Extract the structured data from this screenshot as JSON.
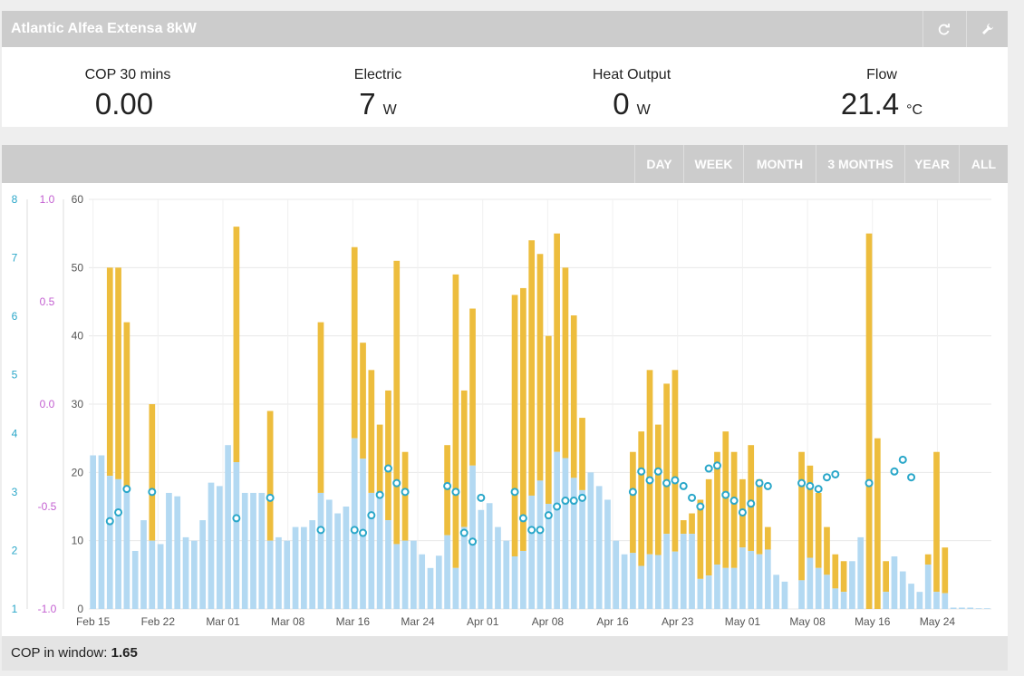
{
  "header": {
    "title": "Atlantic Alfea Extensa 8kW"
  },
  "stats": [
    {
      "label": "COP 30 mins",
      "value": "0.00",
      "unit": ""
    },
    {
      "label": "Electric",
      "value": "7",
      "unit": "W"
    },
    {
      "label": "Heat Output",
      "value": "0",
      "unit": "W"
    },
    {
      "label": "Flow",
      "value": "21.4",
      "unit": "°C"
    }
  ],
  "ranges": [
    "DAY",
    "WEEK",
    "MONTH",
    "3 MONTHS",
    "YEAR",
    "ALL"
  ],
  "colors": {
    "electric": "#b3d9f2",
    "heat": "#edbd3d",
    "cop": "#2aa7c9",
    "cop_axis": "#2aa7c9",
    "secondary_axis": "#c35fd1"
  },
  "footer": {
    "label": "COP in window:",
    "value": "1.65"
  },
  "chart_data": {
    "type": "bar",
    "stacked": true,
    "x_labels": [
      "Feb 15",
      "Feb 22",
      "Mar 01",
      "Mar 08",
      "Mar 16",
      "Mar 24",
      "Apr 01",
      "Apr 08",
      "Apr 16",
      "Apr 23",
      "May 01",
      "May 08",
      "May 16",
      "May 24"
    ],
    "y_left_ticks": [
      0,
      10,
      20,
      30,
      40,
      50,
      60
    ],
    "y_cop_ticks": [
      1,
      2,
      3,
      4,
      5,
      6,
      7,
      8
    ],
    "y_secondary_ticks": [
      "-1.0",
      "-0.5",
      "0.0",
      "0.5",
      "1.0"
    ],
    "ylim": [
      0,
      60
    ],
    "cop_lim": [
      1,
      8
    ],
    "grid": true,
    "series": [
      {
        "name": "electric",
        "values": [
          22.5,
          22.5,
          19.5,
          19,
          18,
          8.5,
          13,
          10,
          9.5,
          17,
          16.5,
          10.5,
          10,
          13,
          18.5,
          18,
          24,
          21.5,
          17,
          17,
          17,
          10,
          10.5,
          10,
          12,
          12,
          13,
          17,
          16,
          14,
          15,
          25,
          22,
          17,
          17,
          13,
          9.5,
          10,
          10,
          8,
          6,
          7.8,
          10.8,
          6,
          12,
          21,
          14.5,
          15.5,
          12,
          10,
          7.7,
          8.5,
          16.6,
          18.8,
          15.4,
          23,
          22.1,
          19.2,
          17.4,
          20,
          18,
          16,
          10,
          8,
          8.2,
          6.3,
          8,
          7.9,
          11,
          8.4,
          11,
          11,
          4.4,
          4.9,
          6.5,
          6,
          6,
          9,
          8.5,
          8,
          8.7,
          5,
          4,
          0,
          4.2,
          7.5,
          6,
          5,
          3,
          2.5,
          7,
          10.5,
          0,
          0,
          2.5,
          7.7,
          5.5,
          3.7,
          2.5,
          6.5,
          2.5,
          2.3,
          0.2,
          0.2,
          0.2,
          0.1,
          0.1
        ]
      },
      {
        "name": "heat",
        "values": [
          0,
          0,
          50,
          50,
          42,
          0,
          0,
          30,
          0,
          0,
          0,
          0,
          0,
          0,
          0,
          0,
          0,
          56,
          0,
          0,
          0,
          29,
          0,
          0,
          0,
          0,
          0,
          42,
          0,
          0,
          0,
          53,
          39,
          35,
          27,
          32,
          51,
          23,
          0,
          0,
          0,
          0,
          24,
          49,
          32,
          44,
          0,
          0,
          0,
          0,
          46,
          47,
          54,
          52,
          40,
          55,
          50,
          43,
          28,
          0,
          0,
          0,
          0,
          0,
          23,
          26,
          35,
          27,
          33,
          35,
          13,
          14,
          16,
          19,
          23,
          26,
          23,
          19,
          24,
          19,
          12,
          0,
          0,
          0,
          23,
          21,
          17,
          12,
          8,
          7,
          0,
          0,
          55,
          25,
          7,
          0,
          0,
          0,
          0,
          8,
          23,
          9,
          0,
          0,
          0,
          0,
          0
        ]
      },
      {
        "name": "cop",
        "values": [
          null,
          null,
          2.5,
          2.65,
          3.05,
          null,
          null,
          3,
          null,
          null,
          null,
          null,
          null,
          null,
          null,
          null,
          null,
          2.55,
          null,
          null,
          null,
          2.9,
          null,
          null,
          null,
          null,
          null,
          2.35,
          null,
          null,
          null,
          2.35,
          2.3,
          2.6,
          2.95,
          3.4,
          3.15,
          3,
          null,
          null,
          null,
          null,
          3.1,
          3,
          2.3,
          2.15,
          2.9,
          null,
          null,
          null,
          3,
          2.55,
          2.35,
          2.35,
          2.6,
          2.75,
          2.85,
          2.85,
          2.9,
          null,
          null,
          null,
          null,
          null,
          3,
          3.35,
          3.2,
          3.35,
          3.15,
          3.2,
          3.1,
          2.9,
          2.75,
          3.4,
          3.45,
          2.95,
          2.85,
          2.65,
          2.8,
          3.15,
          3.1,
          null,
          null,
          null,
          3.15,
          3.1,
          3.05,
          3.25,
          3.3,
          null,
          null,
          null,
          3.15,
          null,
          null,
          3.35,
          3.55,
          3.25,
          null,
          null,
          null,
          null,
          null,
          null,
          null
        ]
      }
    ]
  }
}
